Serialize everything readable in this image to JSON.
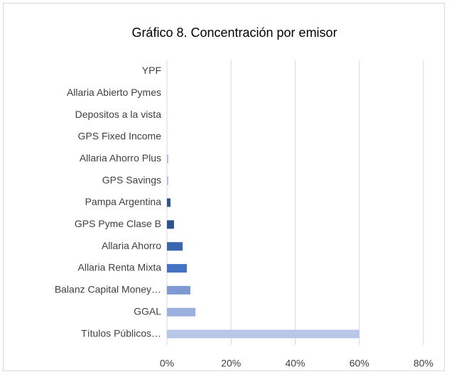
{
  "chart_data": {
    "type": "barh",
    "title": "Gráfico 8. Concentración por emisor",
    "categories": [
      "YPF",
      "Allaria Abierto Pymes",
      "Depositos a la vista",
      "GPS Fixed Income",
      "Allaria Ahorro Plus",
      "GPS Savings",
      "Pampa Argentina",
      "GPS Pyme Clase B",
      "Allaria Ahorro",
      "Allaria Renta Mixta",
      "Balanz Capital Money…",
      "GGAL",
      "Títulos Públicos…"
    ],
    "values": [
      0.01,
      0.02,
      0.05,
      0.1,
      0.4,
      0.4,
      1.1,
      2.2,
      4.9,
      6.2,
      7.3,
      8.9,
      60
    ],
    "colors": [
      "#c9d5ee",
      "#c9d5ee",
      "#c9d5ee",
      "#c9d5ee",
      "#a9bce3",
      "#a9bce3",
      "#2f528f",
      "#2f528f",
      "#3a66ad",
      "#4472c4",
      "#7f99d3",
      "#9cb0dd",
      "#b8c7e7"
    ],
    "xlim": [
      0,
      80
    ],
    "xticks": [
      {
        "value": 0,
        "label": "0%"
      },
      {
        "value": 20,
        "label": "20%"
      },
      {
        "value": 40,
        "label": "40%"
      },
      {
        "value": 60,
        "label": "60%"
      },
      {
        "value": 80,
        "label": "80%"
      }
    ],
    "grid": true
  }
}
